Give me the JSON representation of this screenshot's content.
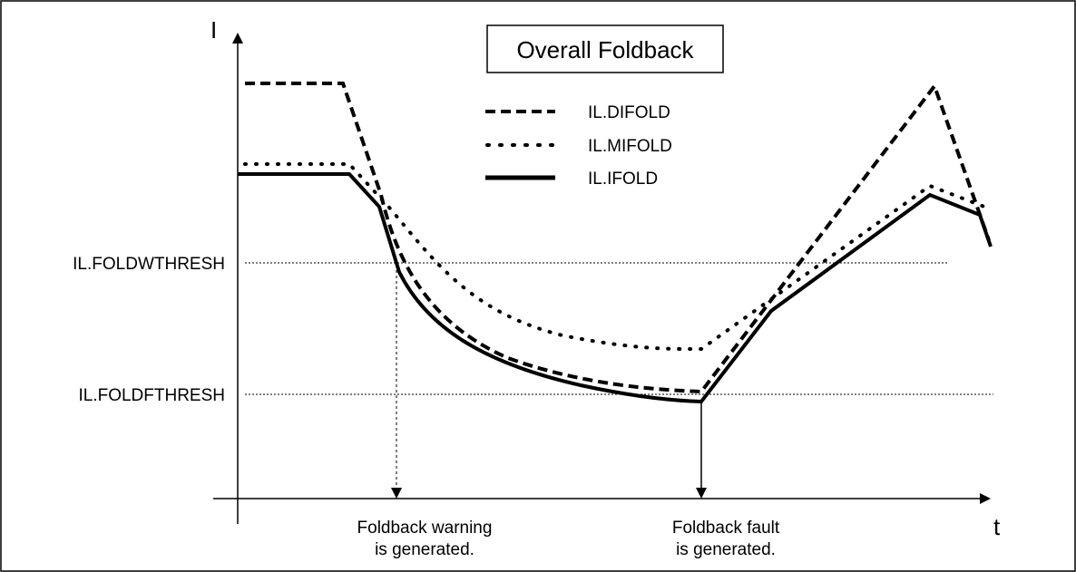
{
  "title": "Overall Foldback",
  "axes": {
    "y_label": "I",
    "x_label": "t"
  },
  "legend": [
    "IL.DIFOLD",
    "IL.MIFOLD",
    "IL.IFOLD"
  ],
  "thresholds": {
    "warning": "IL.FOLDWTHRESH",
    "fault": "IL.FOLDFTHRESH"
  },
  "annotations": {
    "warning": [
      "Foldback warning",
      "is generated."
    ],
    "fault": [
      "Foldback fault",
      "is generated."
    ]
  }
}
